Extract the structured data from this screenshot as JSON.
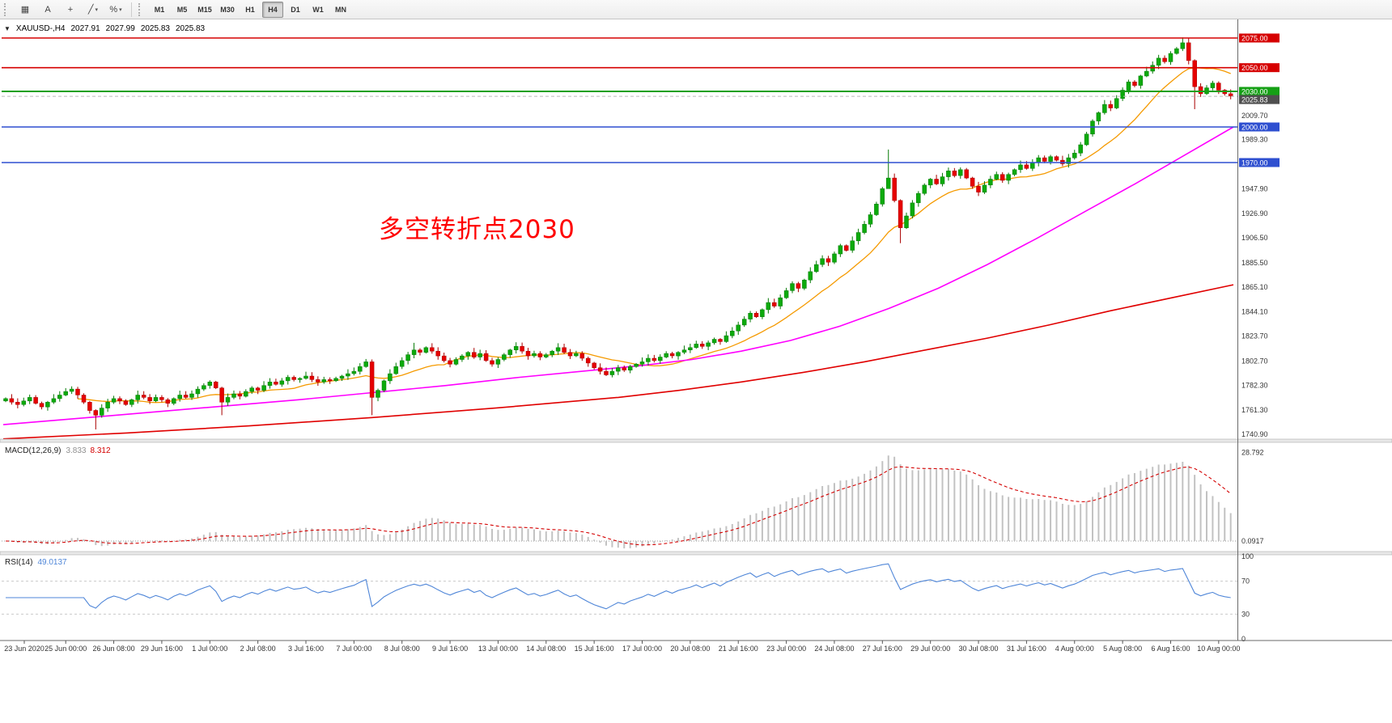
{
  "toolbar": {
    "tools": [
      {
        "name": "charts-grid",
        "glyph": "▦",
        "caret": false
      },
      {
        "name": "text-label",
        "glyph": "A",
        "caret": false
      },
      {
        "name": "crosshair",
        "glyph": "+",
        "caret": false
      },
      {
        "name": "line-studies",
        "glyph": "╱",
        "caret": true
      },
      {
        "name": "fibonacci",
        "glyph": "%",
        "caret": true
      }
    ],
    "timeframes": [
      "M1",
      "M5",
      "M15",
      "M30",
      "H1",
      "H4",
      "D1",
      "W1",
      "MN"
    ],
    "active_timeframe": "H4"
  },
  "header": {
    "collapse_icon": "▼",
    "symbol": "XAUUSD-,H4",
    "open": "2027.91",
    "high": "2027.99",
    "low": "2025.83",
    "close": "2025.83"
  },
  "annotation": {
    "text": "多空转折点2030",
    "color": "#ff0000"
  },
  "indicators": {
    "macd": {
      "name": "MACD(12,26,9)",
      "main_value": "3.833",
      "signal_value": "8.312",
      "axis_max_label": "28.792",
      "axis_zero_label": "0.0917"
    },
    "rsi": {
      "name": "RSI(14)",
      "value": "49.0137",
      "axis_labels": [
        {
          "value": 100,
          "label": "100"
        },
        {
          "value": 70,
          "label": "70"
        },
        {
          "value": 30,
          "label": "30"
        },
        {
          "value": 0,
          "label": "0"
        }
      ],
      "dashed_levels": [
        70,
        30
      ]
    }
  },
  "price_scale": {
    "ticks": [
      {
        "price": 2009.7,
        "label": "2009.70"
      },
      {
        "price": 1989.3,
        "label": "1989.30"
      },
      {
        "price": 1947.9,
        "label": "1947.90"
      },
      {
        "price": 1926.9,
        "label": "1926.90"
      },
      {
        "price": 1906.5,
        "label": "1906.50"
      },
      {
        "price": 1885.5,
        "label": "1885.50"
      },
      {
        "price": 1865.1,
        "label": "1865.10"
      },
      {
        "price": 1844.1,
        "label": "1844.10"
      },
      {
        "price": 1823.7,
        "label": "1823.70"
      },
      {
        "price": 1802.7,
        "label": "1802.70"
      },
      {
        "price": 1782.3,
        "label": "1782.30"
      },
      {
        "price": 1761.3,
        "label": "1761.30"
      },
      {
        "price": 1740.9,
        "label": "1740.90"
      }
    ],
    "current": {
      "value": 2025.83,
      "label": "2025.83",
      "bg": "#4f4f4f"
    }
  },
  "colors": {
    "up_fill": "#0caa0c",
    "up_stroke": "#067a06",
    "down_fill": "#e60000",
    "down_stroke": "#a80000",
    "level_red": "#d60000",
    "level_green": "#15a015",
    "level_blue": "#2e4fd0",
    "ma_fast": "#f59a00",
    "ma_mid": "#ff00ff",
    "ma_slow": "#e00000",
    "macd_hist": "#c2c2c2",
    "macd_signal": "#d40000",
    "rsi_line": "#4f86d8"
  },
  "chart_data": {
    "type": "candlestick",
    "title": "XAUUSD H4",
    "levels": [
      {
        "price": 2075.0,
        "label": "2075.00",
        "color": "#d60000"
      },
      {
        "price": 2050.0,
        "label": "2050.00",
        "color": "#d60000"
      },
      {
        "price": 2030.0,
        "label": "2030.00",
        "color": "#15a015"
      },
      {
        "price": 2000.0,
        "label": "2000.00",
        "color": "#2e4fd0"
      },
      {
        "price": 1970.0,
        "label": "1970.00",
        "color": "#2e4fd0"
      }
    ],
    "y_range": [
      1737,
      2080
    ],
    "first_open": 1769,
    "closes": [
      1771,
      1768,
      1766,
      1769,
      1772,
      1767,
      1764,
      1768,
      1771,
      1774,
      1777,
      1779,
      1774,
      1768,
      1761,
      1757,
      1763,
      1768,
      1771,
      1769,
      1766,
      1770,
      1774,
      1772,
      1769,
      1772,
      1770,
      1767,
      1771,
      1774,
      1772,
      1775,
      1779,
      1782,
      1785,
      1780,
      1768,
      1772,
      1775,
      1773,
      1777,
      1780,
      1778,
      1782,
      1785,
      1783,
      1786,
      1789,
      1787,
      1788,
      1790,
      1787,
      1785,
      1787,
      1786,
      1788,
      1790,
      1792,
      1794,
      1798,
      1802,
      1772,
      1778,
      1786,
      1792,
      1798,
      1803,
      1808,
      1812,
      1810,
      1814,
      1811,
      1807,
      1803,
      1800,
      1804,
      1807,
      1810,
      1806,
      1809,
      1803,
      1800,
      1804,
      1808,
      1812,
      1815,
      1811,
      1807,
      1809,
      1806,
      1808,
      1811,
      1814,
      1810,
      1807,
      1809,
      1805,
      1801,
      1797,
      1794,
      1791,
      1794,
      1797,
      1795,
      1798,
      1800,
      1802,
      1805,
      1803,
      1806,
      1809,
      1807,
      1810,
      1812,
      1814,
      1817,
      1815,
      1818,
      1821,
      1819,
      1824,
      1828,
      1833,
      1838,
      1843,
      1840,
      1846,
      1852,
      1849,
      1856,
      1862,
      1868,
      1864,
      1871,
      1878,
      1884,
      1889,
      1886,
      1893,
      1900,
      1896,
      1904,
      1911,
      1918,
      1926,
      1935,
      1948,
      1957,
      1938,
      1915,
      1925,
      1936,
      1944,
      1951,
      1956,
      1952,
      1958,
      1963,
      1959,
      1964,
      1957,
      1950,
      1945,
      1951,
      1956,
      1960,
      1955,
      1960,
      1964,
      1968,
      1965,
      1970,
      1974,
      1971,
      1975,
      1972,
      1969,
      1974,
      1978,
      1985,
      1994,
      2005,
      2012,
      2019,
      2016,
      2024,
      2031,
      2038,
      2035,
      2043,
      2047,
      2052,
      2058,
      2055,
      2062,
      2066,
      2071,
      2056,
      2034,
      2028,
      2033,
      2037,
      2031,
      2028,
      2026
    ],
    "wick_overrides": {
      "15": [
        1762,
        1745
      ],
      "36": [
        1781,
        1757
      ],
      "61": [
        1804,
        1757
      ],
      "68": [
        1818,
        1805
      ],
      "85": [
        1818.5,
        1809
      ],
      "147": [
        1981,
        1948
      ],
      "149": [
        1939,
        1902
      ],
      "196": [
        2075.5,
        2064
      ],
      "198": [
        2057,
        2015
      ]
    },
    "moving_averages": [
      {
        "name": "fast",
        "type": "sma",
        "period": 13,
        "color": "#f59a00"
      },
      {
        "name": "mid",
        "type": "anchors",
        "color": "#ff00ff",
        "anchors": [
          [
            0,
            1749
          ],
          [
            0.08,
            1756
          ],
          [
            0.16,
            1763
          ],
          [
            0.24,
            1770
          ],
          [
            0.3,
            1776
          ],
          [
            0.36,
            1782
          ],
          [
            0.42,
            1789
          ],
          [
            0.48,
            1795
          ],
          [
            0.52,
            1799
          ],
          [
            0.56,
            1804
          ],
          [
            0.6,
            1811
          ],
          [
            0.64,
            1820
          ],
          [
            0.68,
            1832
          ],
          [
            0.72,
            1847
          ],
          [
            0.76,
            1864
          ],
          [
            0.8,
            1884
          ],
          [
            0.84,
            1906
          ],
          [
            0.88,
            1929
          ],
          [
            0.92,
            1952
          ],
          [
            0.96,
            1976
          ],
          [
            1,
            2000
          ]
        ]
      },
      {
        "name": "slow",
        "type": "anchors",
        "color": "#e00000",
        "anchors": [
          [
            0,
            1737
          ],
          [
            0.1,
            1742
          ],
          [
            0.2,
            1748
          ],
          [
            0.3,
            1755
          ],
          [
            0.4,
            1763
          ],
          [
            0.5,
            1772
          ],
          [
            0.55,
            1778
          ],
          [
            0.6,
            1785
          ],
          [
            0.65,
            1793
          ],
          [
            0.7,
            1802
          ],
          [
            0.75,
            1812
          ],
          [
            0.8,
            1822
          ],
          [
            0.85,
            1833
          ],
          [
            0.9,
            1845
          ],
          [
            0.95,
            1856
          ],
          [
            1,
            1867
          ]
        ]
      }
    ],
    "x_labels": [
      "23 Jun 2020",
      "25 Jun 00:00",
      "26 Jun 08:00",
      "29 Jun 16:00",
      "1 Jul 00:00",
      "2 Jul 08:00",
      "3 Jul 16:00",
      "7 Jul 00:00",
      "8 Jul 08:00",
      "9 Jul 16:00",
      "13 Jul 00:00",
      "14 Jul 08:00",
      "15 Jul 16:00",
      "17 Jul 00:00",
      "20 Jul 08:00",
      "21 Jul 16:00",
      "23 Jul 00:00",
      "24 Jul 08:00",
      "27 Jul 16:00",
      "29 Jul 00:00",
      "30 Jul 08:00",
      "31 Jul 16:00",
      "4 Aug 00:00",
      "5 Aug 08:00",
      "6 Aug 16:00",
      "10 Aug 00:00"
    ]
  }
}
